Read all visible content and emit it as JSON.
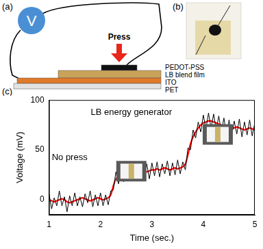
{
  "panels": {
    "a": {
      "label": "(a)",
      "meter": "V",
      "meter_color": "#4a8fd4",
      "arrow": "Press",
      "arrow_color": "#e8261c",
      "layers": [
        {
          "label": "PEDOT-PSS",
          "color": "#111111"
        },
        {
          "label": "LB blend film",
          "color": "#c9a35a"
        },
        {
          "label": "ITO",
          "color": "#e07a2a"
        },
        {
          "label": "PET",
          "color": "#e2e2e2"
        }
      ]
    },
    "b": {
      "label": "(b)"
    },
    "c": {
      "label": "(c)"
    }
  },
  "chart_data": {
    "type": "line",
    "xlabel": "Time (sec.)",
    "ylabel": "Voltage (mV)",
    "annotations": [
      "LB energy generator",
      "No press"
    ],
    "xlim": [
      1,
      5
    ],
    "xticks": [
      1,
      2,
      3,
      4,
      5
    ],
    "ylim": [
      -15,
      100
    ],
    "yticks": [
      0,
      50,
      100
    ],
    "grid": false,
    "x": [
      1,
      1.05,
      1.1,
      1.15,
      1.2,
      1.25,
      1.3,
      1.35,
      1.4,
      1.45,
      1.5,
      1.55,
      1.6,
      1.65,
      1.7,
      1.75,
      1.8,
      1.85,
      1.9,
      1.95,
      2,
      2.05,
      2.1,
      2.15,
      2.2,
      2.25,
      2.3,
      2.35,
      2.4,
      2.45,
      2.5,
      2.55,
      2.6,
      2.65,
      2.7,
      2.75,
      2.8,
      2.85,
      2.9,
      2.95,
      3,
      3.05,
      3.1,
      3.15,
      3.2,
      3.25,
      3.3,
      3.35,
      3.4,
      3.45,
      3.5,
      3.55,
      3.6,
      3.65,
      3.7,
      3.75,
      3.8,
      3.85,
      3.9,
      3.95,
      4,
      4.05,
      4.1,
      4.15,
      4.2,
      4.25,
      4.3,
      4.35,
      4.4,
      4.45,
      4.5,
      4.55,
      4.6,
      4.65,
      4.7,
      4.75,
      4.8,
      4.85,
      4.9,
      4.95,
      5
    ],
    "series": [
      {
        "color": "#000000",
        "values": [
          6,
          -9,
          2,
          -6,
          9,
          -6,
          3,
          -12,
          4,
          -6,
          7,
          -6,
          3,
          -7,
          6,
          -3,
          9,
          -7,
          5,
          -6,
          7,
          -6,
          5,
          -5,
          9,
          10,
          28,
          16,
          31,
          18,
          33,
          19,
          30,
          20,
          35,
          22,
          34,
          24,
          36,
          21,
          37,
          24,
          38,
          23,
          36,
          26,
          39,
          24,
          37,
          25,
          40,
          26,
          38,
          30,
          52,
          50,
          70,
          62,
          78,
          68,
          85,
          71,
          87,
          72,
          86,
          70,
          84,
          68,
          82,
          65,
          80,
          64,
          79,
          66,
          81,
          63,
          78,
          65,
          80,
          64,
          77
        ]
      },
      {
        "color": "#ff0000",
        "values": [
          0,
          -1,
          -2,
          -1,
          0,
          1,
          0,
          -2,
          -3,
          -2,
          -1,
          0,
          1,
          2,
          1,
          0,
          -1,
          0,
          1,
          2,
          1,
          0,
          1,
          2,
          5,
          14,
          21,
          23,
          24,
          25,
          25,
          26,
          25,
          26,
          27,
          28,
          28,
          29,
          28,
          29,
          30,
          30,
          31,
          30,
          31,
          32,
          31,
          30,
          31,
          32,
          31,
          32,
          33,
          36,
          45,
          56,
          63,
          68,
          72,
          75,
          77,
          78,
          79,
          79,
          78,
          77,
          76,
          75,
          74,
          73,
          72,
          71,
          72,
          73,
          72,
          71,
          70,
          71,
          72,
          71,
          70
        ]
      }
    ]
  }
}
